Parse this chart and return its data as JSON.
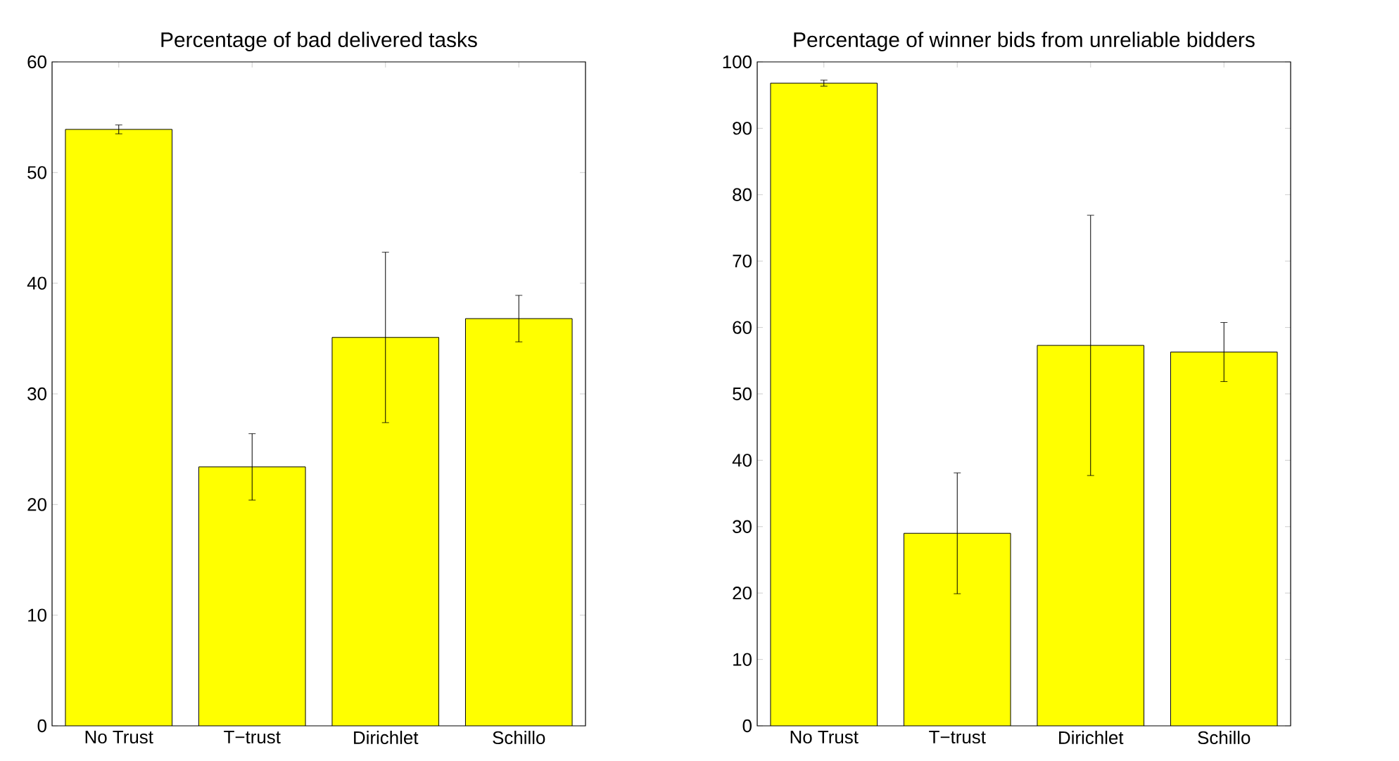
{
  "chart_data": [
    {
      "type": "bar",
      "title": "Percentage of bad delivered tasks",
      "categories": [
        "No Trust",
        "T−trust",
        "Dirichlet",
        "Schillo"
      ],
      "values": [
        53.9,
        23.4,
        35.1,
        36.8
      ],
      "errors": [
        0.4,
        3.0,
        7.7,
        2.1
      ],
      "color": "#ffff00",
      "ylim": [
        0,
        60
      ],
      "yticks": [
        0,
        10,
        20,
        30,
        40,
        50,
        60
      ]
    },
    {
      "type": "bar",
      "title": "Percentage of winner bids from unreliable bidders",
      "categories": [
        "No Trust",
        "T−trust",
        "Dirichlet",
        "Schillo"
      ],
      "values": [
        96.8,
        29.0,
        57.3,
        56.3
      ],
      "errors": [
        0.45,
        9.1,
        19.6,
        4.45
      ],
      "color": "#ffff00",
      "ylim": [
        0,
        100
      ],
      "yticks": [
        0,
        10,
        20,
        30,
        40,
        50,
        60,
        70,
        80,
        90,
        100
      ]
    }
  ]
}
